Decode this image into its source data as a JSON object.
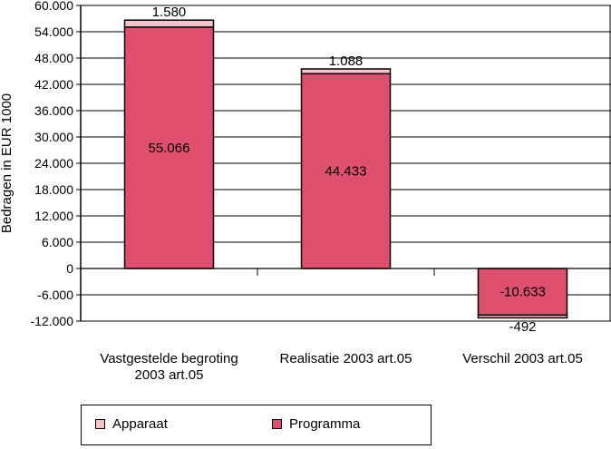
{
  "chart_data": {
    "type": "bar",
    "stacked": true,
    "categories": [
      [
        "Vastgestelde begroting",
        "2003 art.05"
      ],
      [
        "Realisatie 2003 art.05"
      ],
      [
        "Verschil 2003 art.05"
      ]
    ],
    "series": [
      {
        "name": "Programma",
        "values": [
          55066,
          44433,
          -10633
        ],
        "labels": [
          "55.066",
          "44.433",
          "-10.633"
        ],
        "color": "#de506e"
      },
      {
        "name": "Apparaat",
        "values": [
          1580,
          1088,
          -492
        ],
        "labels": [
          "1.580",
          "1.088",
          "-492"
        ],
        "color": "#f7c3c9"
      }
    ],
    "ylabel": "Bedragen in EUR 1000",
    "xlabel": "",
    "ylim": [
      -12000,
      60000
    ],
    "yticks": [
      60000,
      54000,
      48000,
      42000,
      36000,
      30000,
      24000,
      18000,
      12000,
      6000,
      0,
      -6000,
      -12000
    ],
    "ytick_labels": [
      "60.000",
      "54.000",
      "48.000",
      "42.000",
      "36.000",
      "30.000",
      "24.000",
      "18.000",
      "12.000",
      "6.000",
      "0",
      "-6.000",
      "-12.000"
    ],
    "grid": true,
    "legend_position": "bottom"
  },
  "legend": {
    "items": [
      {
        "label": "Apparaat",
        "color": "#f7c3c9"
      },
      {
        "label": "Programma",
        "color": "#de506e"
      }
    ]
  }
}
